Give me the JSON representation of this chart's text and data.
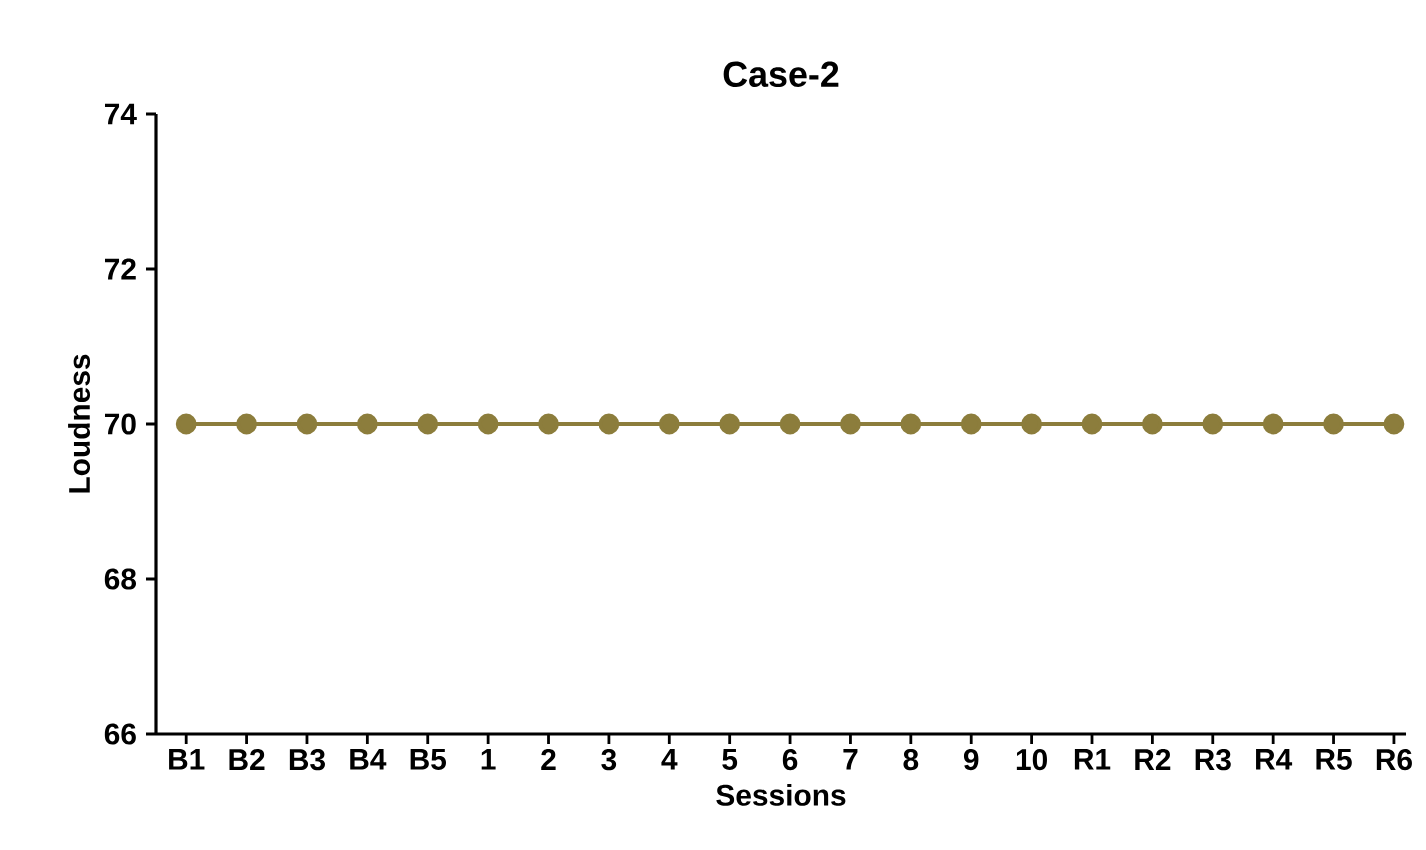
{
  "chart_data": {
    "type": "line",
    "title": "Case-2",
    "xlabel": "Sessions",
    "ylabel": "Loudness",
    "categories": [
      "B1",
      "B2",
      "B3",
      "B4",
      "B5",
      "1",
      "2",
      "3",
      "4",
      "5",
      "6",
      "7",
      "8",
      "9",
      "10",
      "R1",
      "R2",
      "R3",
      "R4",
      "R5",
      "R6"
    ],
    "series": [
      {
        "color": "#8c7d3c",
        "values": [
          70,
          70,
          70,
          70,
          70,
          70,
          70,
          70,
          70,
          70,
          70,
          70,
          70,
          70,
          70,
          70,
          70,
          70,
          70,
          70,
          70
        ]
      }
    ],
    "ylim": [
      66,
      74
    ],
    "yticks": [
      66,
      68,
      70,
      72,
      74
    ],
    "grid": false,
    "marker": "circle",
    "line_style": "solid"
  }
}
